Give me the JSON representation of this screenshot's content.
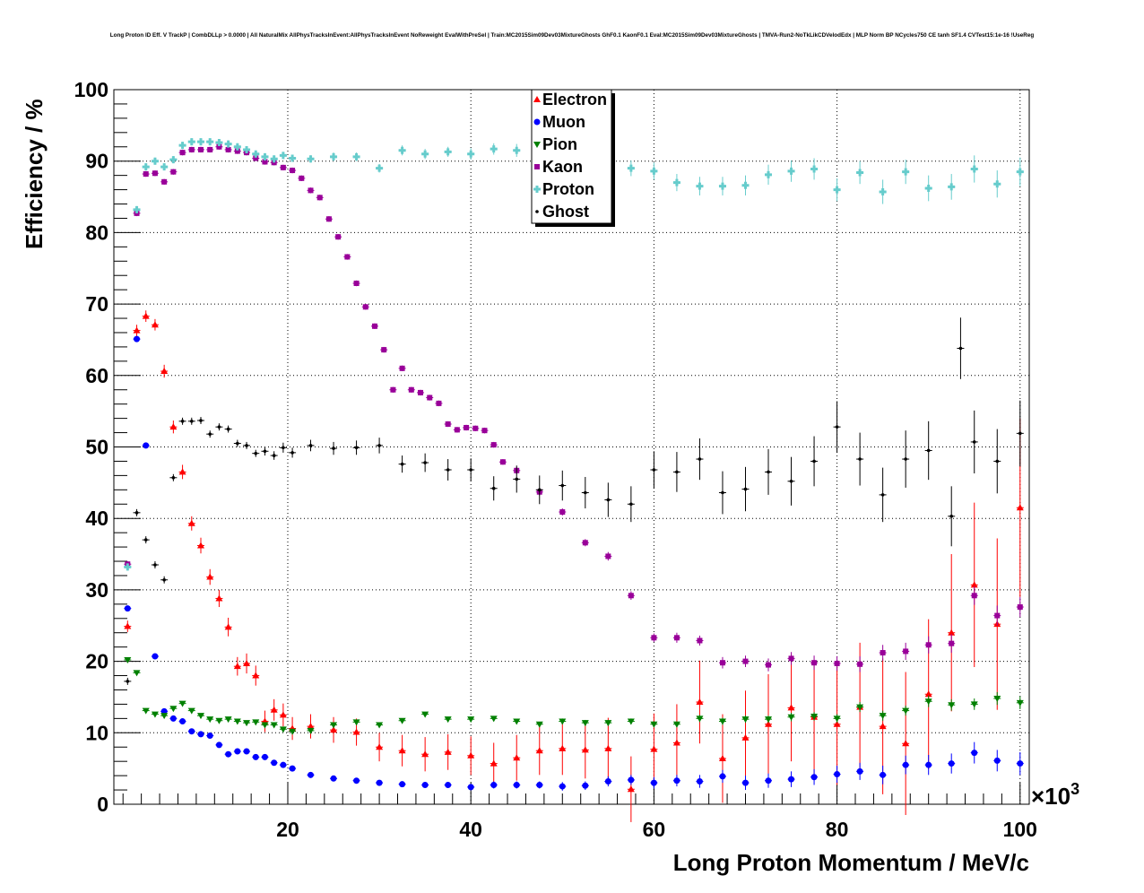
{
  "title": "Long Proton ID Eff. V TrackP | CombDLLp > 0.0000 | All NaturalMix AllPhysTracksInEvent:AllPhysTracksInEvent NoReweight EvalWithPreSel | Train:MC2015Sim09Dev03MixtureGhosts GhF0.1 KaonF0.1 Eval:MC2015Sim09Dev03MixtureGhosts | TMVA-Run2-NoTkLikCDVelodEdx | MLP Norm BP NCycles750 CE tanh SF1.4 CVTest15:1e-16 !UseReg",
  "chart_data": {
    "type": "scatter",
    "title": "Long Proton ID Eff. V TrackP | CombDLLp > 0.0000 | All NaturalMix AllPhysTracksInEvent:AllPhysTracksInEvent NoReweight EvalWithPreSel | Train:MC2015Sim09Dev03MixtureGhosts GhF0.1 KaonF0.1 Eval:MC2015Sim09Dev03MixtureGhosts | TMVA-Run2-NoTkLikCDVelodEdx | MLP Norm BP NCycles750 CE tanh SF1.4 CVTest15:1e-16 !UseReg",
    "xlabel": "Long Proton Momentum / MeV/c",
    "ylabel": "Efficiency / %",
    "x_exponent_label": "×10",
    "x_exponent_power": "3",
    "xlim": [
      1000,
      101000
    ],
    "ylim": [
      0,
      100
    ],
    "x_ticks": [
      20000,
      40000,
      60000,
      80000,
      100000
    ],
    "x_tick_labels": [
      "20",
      "40",
      "60",
      "80",
      "100"
    ],
    "y_ticks": [
      0,
      10,
      20,
      30,
      40,
      50,
      60,
      70,
      80,
      90,
      100
    ],
    "y_tick_labels": [
      "0",
      "10",
      "20",
      "30",
      "40",
      "50",
      "60",
      "70",
      "80",
      "90",
      "100"
    ],
    "grid": true,
    "legend_position": "top-center",
    "series": [
      {
        "name": "Electron",
        "color": "#ff0000",
        "marker": "triangle-up",
        "x": [
          2500,
          3500,
          4500,
          5500,
          6500,
          7500,
          8500,
          9500,
          10500,
          11500,
          12500,
          13500,
          14500,
          15500,
          16500,
          17500,
          18500,
          19500,
          20500,
          22500,
          25000,
          27500,
          30000,
          32500,
          35000,
          37500,
          40000,
          42500,
          45000,
          47500,
          50000,
          52500,
          55000,
          57500,
          60000,
          62500,
          65000,
          67500,
          70000,
          72500,
          75000,
          77500,
          80000,
          82500,
          85000,
          87500,
          90000,
          92500,
          95000,
          97500,
          100000
        ],
        "y": [
          24.9,
          66.3,
          68.3,
          67.1,
          60.6,
          52.8,
          46.5,
          39.3,
          36.2,
          31.8,
          28.8,
          24.8,
          19.3,
          19.7,
          18.0,
          11.6,
          13.2,
          12.5,
          10.6,
          10.9,
          10.4,
          10.1,
          8.0,
          7.5,
          7.0,
          7.3,
          6.8,
          5.7,
          6.5,
          7.5,
          7.8,
          7.6,
          7.8,
          2.1,
          7.7,
          8.6,
          14.3,
          6.4,
          9.3,
          11.2,
          13.5,
          12.2,
          11.2,
          13.6,
          10.9,
          8.5,
          15.4,
          24.0,
          30.7,
          25.2,
          41.5
        ],
        "err": [
          0.8,
          0.8,
          0.8,
          0.8,
          0.9,
          0.9,
          1.0,
          1.0,
          1.1,
          1.1,
          1.2,
          1.3,
          1.3,
          1.4,
          1.4,
          1.5,
          1.5,
          1.6,
          1.6,
          1.7,
          1.8,
          1.9,
          2.0,
          2.2,
          2.4,
          2.5,
          2.7,
          2.9,
          3.2,
          3.4,
          3.7,
          4.0,
          4.3,
          4.6,
          5.0,
          5.4,
          5.8,
          6.2,
          6.6,
          7.0,
          7.5,
          8.0,
          8.5,
          9.0,
          9.5,
          10.0,
          10.5,
          11.0,
          11.5,
          12.0,
          12.5
        ]
      },
      {
        "name": "Muon",
        "color": "#0000ff",
        "marker": "circle",
        "x": [
          2500,
          3500,
          4500,
          5500,
          6500,
          7500,
          8500,
          9500,
          10500,
          11500,
          12500,
          13500,
          14500,
          15500,
          16500,
          17500,
          18500,
          19500,
          20500,
          22500,
          25000,
          27500,
          30000,
          32500,
          35000,
          37500,
          40000,
          42500,
          45000,
          47500,
          50000,
          52500,
          55000,
          57500,
          60000,
          62500,
          65000,
          67500,
          70000,
          72500,
          75000,
          77500,
          80000,
          82500,
          85000,
          87500,
          90000,
          92500,
          95000,
          97500,
          100000
        ],
        "y": [
          27.4,
          65.1,
          50.2,
          20.7,
          13.0,
          12.0,
          11.6,
          10.2,
          9.8,
          9.6,
          8.3,
          7.0,
          7.4,
          7.4,
          6.6,
          6.6,
          5.8,
          5.5,
          5.0,
          4.1,
          3.6,
          3.3,
          3.0,
          2.8,
          2.7,
          2.7,
          2.4,
          2.7,
          2.7,
          2.7,
          2.5,
          2.6,
          3.2,
          3.4,
          3.0,
          3.3,
          3.2,
          3.9,
          3.0,
          3.3,
          3.5,
          3.8,
          4.2,
          4.6,
          4.1,
          5.5,
          5.5,
          5.7,
          7.2,
          6.1,
          5.7
        ],
        "err": [
          0.3,
          0.3,
          0.3,
          0.3,
          0.3,
          0.3,
          0.3,
          0.3,
          0.3,
          0.3,
          0.3,
          0.3,
          0.3,
          0.3,
          0.3,
          0.3,
          0.3,
          0.3,
          0.3,
          0.3,
          0.3,
          0.3,
          0.3,
          0.3,
          0.4,
          0.4,
          0.4,
          0.5,
          0.5,
          0.5,
          0.6,
          0.6,
          0.7,
          0.7,
          0.8,
          0.8,
          0.9,
          0.9,
          1.0,
          1.0,
          1.1,
          1.1,
          1.2,
          1.2,
          1.3,
          1.3,
          1.4,
          1.4,
          1.5,
          1.5,
          1.6
        ]
      },
      {
        "name": "Pion",
        "color": "#008000",
        "marker": "triangle-down",
        "x": [
          2500,
          3500,
          4500,
          5500,
          6500,
          7500,
          8500,
          9500,
          10500,
          11500,
          12500,
          13500,
          14500,
          15500,
          16500,
          17500,
          18500,
          19500,
          20500,
          22500,
          25000,
          27500,
          30000,
          32500,
          35000,
          37500,
          40000,
          42500,
          45000,
          47500,
          50000,
          52500,
          55000,
          57500,
          60000,
          62500,
          65000,
          67500,
          70000,
          72500,
          75000,
          77500,
          80000,
          82500,
          85000,
          87500,
          90000,
          92500,
          95000,
          97500,
          100000
        ],
        "y": [
          20.2,
          18.4,
          13.1,
          12.6,
          12.4,
          13.4,
          14.1,
          13.1,
          12.4,
          11.9,
          11.7,
          11.9,
          11.6,
          11.4,
          11.5,
          11.1,
          11.1,
          10.5,
          10.2,
          10.3,
          11.1,
          11.5,
          11.1,
          11.7,
          12.6,
          11.9,
          11.9,
          12.0,
          11.6,
          11.2,
          11.6,
          11.4,
          11.4,
          11.6,
          11.2,
          11.2,
          12.0,
          11.6,
          11.9,
          11.9,
          12.2,
          12.3,
          12.0,
          13.6,
          12.4,
          13.1,
          14.4,
          13.9,
          14.0,
          14.8,
          14.2
        ],
        "err": [
          0.3,
          0.3,
          0.3,
          0.3,
          0.3,
          0.3,
          0.3,
          0.3,
          0.3,
          0.3,
          0.3,
          0.3,
          0.3,
          0.3,
          0.3,
          0.3,
          0.3,
          0.3,
          0.3,
          0.3,
          0.3,
          0.3,
          0.3,
          0.3,
          0.3,
          0.3,
          0.3,
          0.3,
          0.3,
          0.3,
          0.4,
          0.4,
          0.4,
          0.4,
          0.4,
          0.4,
          0.5,
          0.5,
          0.5,
          0.5,
          0.6,
          0.6,
          0.6,
          0.7,
          0.7,
          0.7,
          0.8,
          0.8,
          0.8,
          0.9,
          0.9
        ]
      },
      {
        "name": "Kaon",
        "color": "#990099",
        "marker": "square",
        "x": [
          2500,
          3500,
          4500,
          5500,
          6500,
          7500,
          8500,
          9500,
          10500,
          11500,
          12500,
          13500,
          14500,
          15500,
          16500,
          17500,
          18500,
          19500,
          20500,
          21500,
          22500,
          23500,
          24500,
          25500,
          26500,
          27500,
          28500,
          29500,
          30500,
          31500,
          32500,
          33500,
          34500,
          35500,
          36500,
          37500,
          38500,
          39500,
          40500,
          41500,
          42500,
          43500,
          45000,
          47500,
          50000,
          52500,
          55000,
          57500,
          60000,
          62500,
          65000,
          67500,
          70000,
          72500,
          75000,
          77500,
          80000,
          82500,
          85000,
          87500,
          90000,
          92500,
          95000,
          97500,
          100000
        ],
        "y": [
          33.6,
          82.7,
          88.2,
          88.3,
          87.1,
          88.5,
          91.2,
          91.6,
          91.6,
          91.6,
          92.0,
          91.6,
          91.4,
          91.2,
          90.4,
          89.9,
          89.8,
          89.1,
          88.7,
          87.6,
          85.9,
          84.9,
          81.9,
          79.4,
          76.6,
          72.9,
          69.6,
          66.9,
          63.6,
          58.0,
          61.0,
          58.0,
          57.6,
          56.9,
          56.1,
          53.2,
          52.4,
          52.7,
          52.6,
          52.3,
          50.3,
          47.9,
          46.7,
          43.7,
          40.9,
          36.6,
          34.7,
          29.2,
          23.3,
          23.3,
          22.9,
          19.8,
          20.0,
          19.5,
          20.4,
          19.8,
          19.7,
          19.6,
          21.2,
          21.4,
          22.3,
          22.5,
          29.2,
          26.4,
          27.6
        ],
        "err": [
          0.4,
          0.4,
          0.4,
          0.4,
          0.4,
          0.4,
          0.4,
          0.4,
          0.4,
          0.4,
          0.4,
          0.4,
          0.4,
          0.4,
          0.4,
          0.4,
          0.4,
          0.4,
          0.4,
          0.4,
          0.4,
          0.4,
          0.4,
          0.4,
          0.4,
          0.4,
          0.4,
          0.4,
          0.4,
          0.4,
          0.4,
          0.4,
          0.4,
          0.4,
          0.4,
          0.4,
          0.4,
          0.4,
          0.4,
          0.4,
          0.4,
          0.4,
          0.5,
          0.5,
          0.5,
          0.5,
          0.6,
          0.6,
          0.6,
          0.7,
          0.7,
          0.8,
          0.8,
          0.9,
          0.9,
          1.0,
          1.0,
          1.1,
          1.1,
          1.2,
          1.2,
          1.3,
          1.3,
          1.4,
          1.4
        ]
      },
      {
        "name": "Proton",
        "color": "#66cccc",
        "marker": "cross",
        "x": [
          2500,
          3500,
          4500,
          5500,
          6500,
          7500,
          8500,
          9500,
          10500,
          11500,
          12500,
          13500,
          14500,
          15500,
          16500,
          17500,
          18500,
          19500,
          20500,
          22500,
          25000,
          27500,
          30000,
          32500,
          35000,
          37500,
          40000,
          42500,
          45000,
          47500,
          50000,
          52500,
          55000,
          57500,
          60000,
          62500,
          65000,
          67500,
          70000,
          72500,
          75000,
          77500,
          80000,
          82500,
          85000,
          87500,
          90000,
          92500,
          95000,
          97500,
          100000
        ],
        "y": [
          33.2,
          83.2,
          89.2,
          90.0,
          89.2,
          90.2,
          92.2,
          92.7,
          92.7,
          92.7,
          92.6,
          92.4,
          92.0,
          91.6,
          91.0,
          90.6,
          90.3,
          90.8,
          90.4,
          90.3,
          90.6,
          90.6,
          89.0,
          91.5,
          91.0,
          91.3,
          91.0,
          91.7,
          91.5,
          91.0,
          89.6,
          90.3,
          89.1,
          89.0,
          88.6,
          87.0,
          86.5,
          86.5,
          86.6,
          88.1,
          88.6,
          88.9,
          86.0,
          88.4,
          85.7,
          88.5,
          86.2,
          86.4,
          88.9,
          86.8,
          88.5
        ],
        "err": [
          0.5,
          0.5,
          0.5,
          0.5,
          0.5,
          0.5,
          0.5,
          0.5,
          0.5,
          0.5,
          0.5,
          0.5,
          0.5,
          0.5,
          0.5,
          0.5,
          0.5,
          0.5,
          0.5,
          0.5,
          0.6,
          0.6,
          0.6,
          0.7,
          0.7,
          0.7,
          0.8,
          0.8,
          0.9,
          0.9,
          1.0,
          1.0,
          1.1,
          1.1,
          1.2,
          1.2,
          1.3,
          1.3,
          1.4,
          1.4,
          1.5,
          1.5,
          1.6,
          1.6,
          1.7,
          1.7,
          1.8,
          1.8,
          1.9,
          1.9,
          2.0
        ]
      },
      {
        "name": "Ghost",
        "color": "#000000",
        "marker": "dot",
        "x": [
          2500,
          3500,
          4500,
          5500,
          6500,
          7500,
          8500,
          9500,
          10500,
          11500,
          12500,
          13500,
          14500,
          15500,
          16500,
          17500,
          18500,
          19500,
          20500,
          22500,
          25000,
          27500,
          30000,
          32500,
          35000,
          37500,
          40000,
          42500,
          45000,
          47500,
          50000,
          52500,
          55000,
          57500,
          60000,
          62500,
          65000,
          67500,
          70000,
          72500,
          75000,
          77500,
          80000,
          82500,
          85000,
          87500,
          90000,
          92500,
          93500,
          95000,
          97500,
          100000
        ],
        "y": [
          17.2,
          40.8,
          37.0,
          33.5,
          31.4,
          45.7,
          53.6,
          53.6,
          53.7,
          51.8,
          52.8,
          52.5,
          50.5,
          50.2,
          49.1,
          49.4,
          48.8,
          49.9,
          49.2,
          50.2,
          49.8,
          49.9,
          50.2,
          47.6,
          47.8,
          46.8,
          46.8,
          44.2,
          45.5,
          44.0,
          44.6,
          43.6,
          42.6,
          42.0,
          46.8,
          46.5,
          48.3,
          43.6,
          44.1,
          46.5,
          45.2,
          48.0,
          52.8,
          48.3,
          43.3,
          48.3,
          49.5,
          40.3,
          63.8,
          50.7,
          48.0,
          51.9
        ],
        "err": [
          0.5,
          0.5,
          0.5,
          0.5,
          0.5,
          0.5,
          0.5,
          0.5,
          0.5,
          0.5,
          0.5,
          0.5,
          0.5,
          0.5,
          0.5,
          0.6,
          0.6,
          0.7,
          0.7,
          0.8,
          0.9,
          1.0,
          1.1,
          1.2,
          1.3,
          1.5,
          1.6,
          1.7,
          1.9,
          2.0,
          2.1,
          2.2,
          2.4,
          2.5,
          2.6,
          2.8,
          2.9,
          3.0,
          3.1,
          3.2,
          3.4,
          3.5,
          3.6,
          3.7,
          3.8,
          4.0,
          4.1,
          4.2,
          4.3,
          4.4,
          4.5,
          4.6
        ]
      }
    ]
  }
}
